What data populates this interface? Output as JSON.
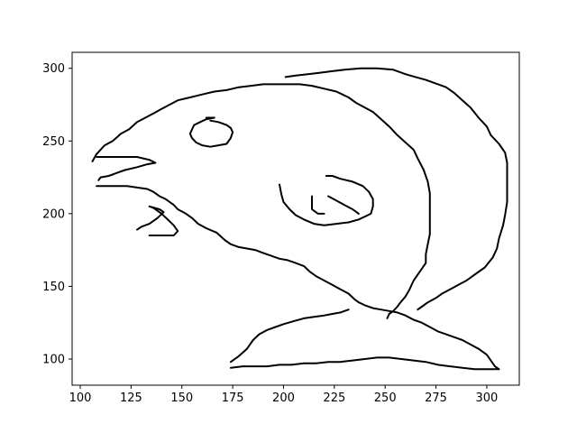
{
  "chart_data": {
    "type": "line",
    "title": "",
    "xlabel": "",
    "ylabel": "",
    "xlim": [
      96,
      316
    ],
    "ylim": [
      82,
      311
    ],
    "grid": false,
    "x_ticks": [
      100,
      125,
      150,
      175,
      200,
      225,
      250,
      275,
      300
    ],
    "y_ticks": [
      100,
      150,
      200,
      250,
      300
    ],
    "line_color": "#000000",
    "series": [
      {
        "points": [
          [
            106,
            236
          ],
          [
            108,
            241
          ],
          [
            112,
            247
          ],
          [
            116,
            250
          ],
          [
            120,
            255
          ],
          [
            124,
            258
          ],
          [
            128,
            263
          ],
          [
            132,
            266
          ],
          [
            136,
            269
          ],
          [
            140,
            272
          ],
          [
            144,
            275
          ],
          [
            148,
            278
          ],
          [
            154,
            280
          ],
          [
            160,
            282
          ],
          [
            166,
            284
          ],
          [
            172,
            285
          ],
          [
            178,
            287
          ],
          [
            184,
            288
          ],
          [
            190,
            289
          ],
          [
            196,
            289
          ],
          [
            202,
            289
          ],
          [
            208,
            289
          ],
          [
            214,
            288
          ],
          [
            220,
            286
          ],
          [
            226,
            284
          ],
          [
            232,
            280
          ],
          [
            236,
            276
          ],
          [
            240,
            273
          ],
          [
            244,
            270
          ],
          [
            248,
            265
          ],
          [
            252,
            260
          ],
          [
            256,
            254
          ],
          [
            260,
            249
          ],
          [
            264,
            244
          ],
          [
            266,
            238
          ],
          [
            269,
            230
          ],
          [
            271,
            222
          ],
          [
            272,
            214
          ],
          [
            272,
            206
          ],
          [
            272,
            196
          ],
          [
            272,
            186
          ],
          [
            271,
            179
          ],
          [
            270,
            172
          ],
          [
            270,
            166
          ],
          [
            267,
            160
          ],
          [
            264,
            154
          ],
          [
            262,
            148
          ],
          [
            260,
            143
          ],
          [
            257,
            138
          ],
          [
            256,
            136
          ],
          [
            254,
            133
          ],
          [
            252,
            131
          ],
          [
            251,
            128
          ]
        ]
      },
      {
        "points": [
          [
            108,
            239
          ],
          [
            118,
            239
          ],
          [
            128,
            239
          ],
          [
            131,
            238
          ],
          [
            134,
            237
          ],
          [
            137,
            235
          ],
          [
            133,
            234
          ],
          [
            128,
            232
          ],
          [
            122,
            230
          ],
          [
            118,
            228
          ],
          [
            114,
            226
          ],
          [
            110,
            225
          ],
          [
            109,
            223
          ]
        ]
      },
      {
        "points": [
          [
            108,
            219
          ],
          [
            115,
            219
          ],
          [
            123,
            219
          ],
          [
            128,
            218
          ],
          [
            133,
            217
          ],
          [
            136,
            215
          ],
          [
            139,
            212
          ],
          [
            142,
            210
          ],
          [
            146,
            206
          ],
          [
            148,
            203
          ],
          [
            152,
            200
          ],
          [
            155,
            197
          ],
          [
            158,
            193
          ],
          [
            162,
            190
          ],
          [
            167,
            187
          ],
          [
            171,
            182
          ],
          [
            174,
            179
          ],
          [
            178,
            177
          ],
          [
            182,
            176
          ],
          [
            186,
            175
          ],
          [
            190,
            173
          ],
          [
            194,
            171
          ],
          [
            198,
            169
          ],
          [
            202,
            168
          ],
          [
            206,
            166
          ],
          [
            210,
            164
          ],
          [
            213,
            160
          ],
          [
            216,
            157
          ],
          [
            220,
            154
          ],
          [
            224,
            151
          ],
          [
            228,
            148
          ],
          [
            232,
            145
          ],
          [
            235,
            141
          ],
          [
            237,
            139
          ],
          [
            240,
            137
          ],
          [
            244,
            135
          ],
          [
            248,
            134
          ],
          [
            252,
            133
          ],
          [
            256,
            132
          ],
          [
            260,
            130
          ],
          [
            264,
            127
          ],
          [
            268,
            125
          ],
          [
            272,
            122
          ],
          [
            276,
            119
          ],
          [
            280,
            117
          ],
          [
            284,
            115
          ],
          [
            288,
            113
          ],
          [
            292,
            110
          ],
          [
            296,
            107
          ],
          [
            300,
            103
          ],
          [
            302,
            99
          ],
          [
            304,
            95
          ],
          [
            306,
            93
          ],
          [
            300,
            93
          ],
          [
            294,
            93
          ],
          [
            288,
            94
          ],
          [
            282,
            95
          ],
          [
            276,
            96
          ],
          [
            270,
            98
          ],
          [
            264,
            99
          ],
          [
            258,
            100
          ],
          [
            252,
            101
          ],
          [
            246,
            101
          ],
          [
            240,
            100
          ],
          [
            234,
            99
          ],
          [
            228,
            98
          ],
          [
            222,
            98
          ],
          [
            216,
            97
          ],
          [
            210,
            97
          ],
          [
            204,
            96
          ],
          [
            198,
            96
          ],
          [
            192,
            95
          ],
          [
            186,
            95
          ],
          [
            180,
            95
          ],
          [
            174,
            94
          ]
        ]
      },
      {
        "points": [
          [
            174,
            98
          ],
          [
            178,
            102
          ],
          [
            182,
            107
          ],
          [
            185,
            113
          ],
          [
            188,
            117
          ],
          [
            192,
            120
          ],
          [
            196,
            122
          ],
          [
            200,
            124
          ],
          [
            205,
            126
          ],
          [
            210,
            128
          ],
          [
            215,
            129
          ],
          [
            220,
            130
          ],
          [
            224,
            131
          ],
          [
            228,
            132
          ],
          [
            232,
            134
          ]
        ]
      },
      {
        "points": [
          [
            134,
            185
          ],
          [
            146,
            185
          ],
          [
            148,
            188
          ],
          [
            146,
            192
          ],
          [
            143,
            196
          ],
          [
            140,
            200
          ],
          [
            136,
            204
          ],
          [
            134,
            205
          ],
          [
            139,
            203
          ],
          [
            141,
            201
          ],
          [
            138,
            197
          ],
          [
            134,
            193
          ],
          [
            130,
            191
          ],
          [
            128,
            189
          ]
        ]
      },
      {
        "points": [
          [
            162,
            266
          ],
          [
            166,
            266
          ],
          [
            162,
            265
          ],
          [
            159,
            263
          ],
          [
            156,
            261
          ],
          [
            155,
            258
          ],
          [
            154,
            255
          ],
          [
            155,
            252
          ],
          [
            157,
            249
          ],
          [
            160,
            247
          ],
          [
            164,
            246
          ],
          [
            168,
            247
          ],
          [
            172,
            248
          ],
          [
            174,
            252
          ],
          [
            175,
            256
          ],
          [
            174,
            259
          ],
          [
            172,
            261
          ],
          [
            168,
            263
          ],
          [
            164,
            264
          ]
        ]
      },
      {
        "points": [
          [
            198,
            220
          ],
          [
            199,
            213
          ],
          [
            200,
            208
          ],
          [
            203,
            203
          ],
          [
            206,
            199
          ],
          [
            210,
            196
          ],
          [
            215,
            193
          ],
          [
            220,
            192
          ],
          [
            226,
            193
          ],
          [
            232,
            194
          ],
          [
            237,
            196
          ],
          [
            240,
            198
          ],
          [
            243,
            200
          ],
          [
            244,
            205
          ],
          [
            244,
            210
          ],
          [
            242,
            215
          ],
          [
            239,
            219
          ],
          [
            234,
            222
          ],
          [
            228,
            224
          ],
          [
            224,
            226
          ],
          [
            221,
            226
          ]
        ]
      },
      {
        "points": [
          [
            214,
            212
          ],
          [
            214,
            207
          ],
          [
            214,
            203
          ],
          [
            217,
            200
          ],
          [
            220,
            200
          ]
        ]
      },
      {
        "points": [
          [
            222,
            212
          ],
          [
            226,
            209
          ],
          [
            230,
            206
          ],
          [
            234,
            203
          ],
          [
            237,
            200
          ]
        ]
      },
      {
        "points": [
          [
            201,
            294
          ],
          [
            206,
            295
          ],
          [
            212,
            296
          ],
          [
            218,
            297
          ],
          [
            224,
            298
          ],
          [
            230,
            299
          ],
          [
            238,
            300
          ],
          [
            246,
            300
          ],
          [
            254,
            299
          ],
          [
            260,
            296
          ],
          [
            265,
            294
          ],
          [
            270,
            292
          ],
          [
            274,
            290
          ],
          [
            280,
            287
          ],
          [
            284,
            283
          ],
          [
            288,
            278
          ],
          [
            292,
            273
          ],
          [
            296,
            266
          ],
          [
            300,
            260
          ],
          [
            302,
            254
          ],
          [
            306,
            248
          ],
          [
            309,
            242
          ],
          [
            310,
            235
          ],
          [
            310,
            226
          ],
          [
            310,
            218
          ],
          [
            310,
            208
          ],
          [
            309,
            199
          ],
          [
            308,
            192
          ],
          [
            306,
            183
          ],
          [
            305,
            176
          ],
          [
            303,
            170
          ],
          [
            299,
            163
          ],
          [
            294,
            158
          ],
          [
            290,
            154
          ],
          [
            286,
            151
          ],
          [
            282,
            148
          ],
          [
            278,
            145
          ],
          [
            275,
            142
          ],
          [
            271,
            139
          ],
          [
            268,
            136
          ],
          [
            266,
            134
          ]
        ]
      }
    ]
  }
}
